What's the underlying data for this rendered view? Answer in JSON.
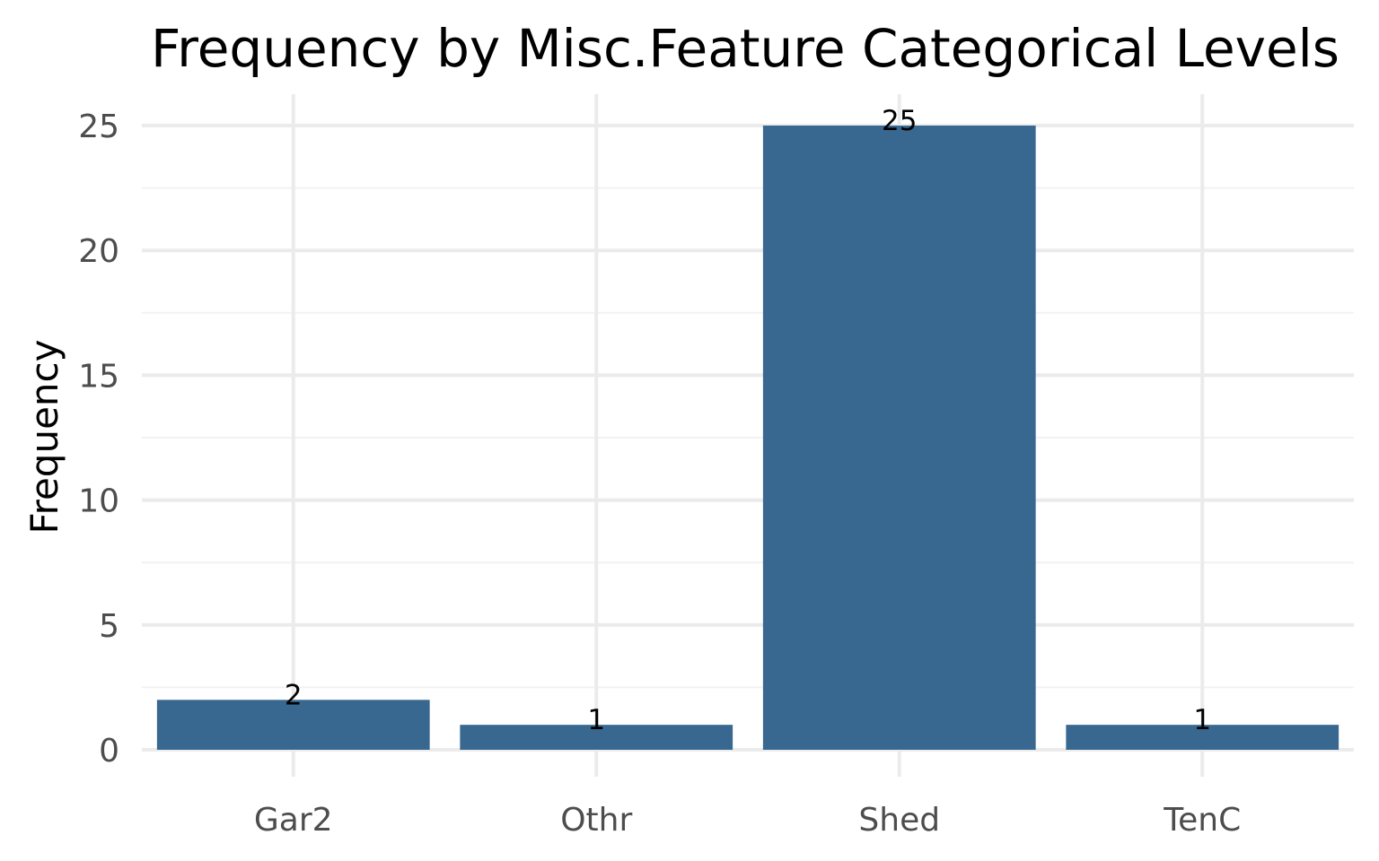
{
  "chart_data": {
    "type": "bar",
    "title": "Frequency by Misc.Feature Categorical Levels",
    "xlabel": "",
    "ylabel": "Frequency",
    "categories": [
      "Gar2",
      "Othr",
      "Shed",
      "TenC"
    ],
    "values": [
      2,
      1,
      25,
      1
    ],
    "value_labels": [
      "2",
      "1",
      "25",
      "1"
    ],
    "ylim": [
      0,
      26.25
    ],
    "yticks": [
      0,
      5,
      10,
      15,
      20,
      25
    ],
    "ytick_labels": [
      "0",
      "5",
      "10",
      "15",
      "20",
      "25"
    ],
    "grid": true,
    "legend": "none",
    "bar_color": "#386890"
  }
}
